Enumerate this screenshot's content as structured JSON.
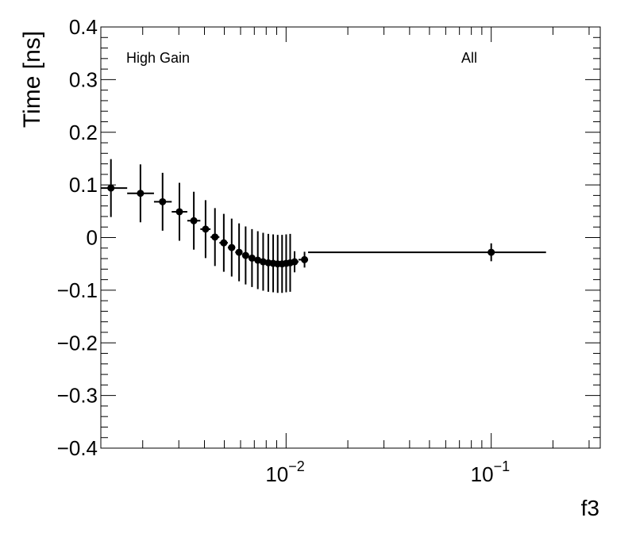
{
  "chart_data": {
    "type": "scatter",
    "title": "",
    "xlabel": "f3",
    "ylabel": "Time [ns]",
    "x_scale": "log",
    "xlim": [
      0.00125,
      0.34
    ],
    "ylim": [
      -0.4,
      0.4
    ],
    "grid": false,
    "legend": "none",
    "colors": {
      "marker": "#000000",
      "axes": "#000000",
      "background": "#ffffff"
    },
    "y_ticks": [
      {
        "value": 0.4,
        "label": "0.4"
      },
      {
        "value": 0.3,
        "label": "0.3"
      },
      {
        "value": 0.2,
        "label": "0.2"
      },
      {
        "value": 0.1,
        "label": "0.1"
      },
      {
        "value": 0.0,
        "label": "0"
      },
      {
        "value": -0.1,
        "label": "−0.1"
      },
      {
        "value": -0.2,
        "label": "−0.2"
      },
      {
        "value": -0.3,
        "label": "−0.3"
      },
      {
        "value": -0.4,
        "label": "−0.4"
      }
    ],
    "x_ticks": [
      {
        "value": 0.01,
        "base": "10",
        "exponent": "−2"
      },
      {
        "value": 0.1,
        "base": "10",
        "exponent": "−1"
      }
    ],
    "annotations": [
      {
        "text": "High Gain",
        "position": "top-left"
      },
      {
        "text": "All",
        "position": "top-right"
      }
    ],
    "series": [
      {
        "points": [
          {
            "x": 0.0014,
            "y": 0.094,
            "xlo": 0.00125,
            "xhi": 0.00168,
            "yerr": 0.055
          },
          {
            "x": 0.00195,
            "y": 0.084,
            "xlo": 0.00168,
            "xhi": 0.00227,
            "yerr": 0.055
          },
          {
            "x": 0.0025,
            "y": 0.068,
            "xlo": 0.00227,
            "xhi": 0.00277,
            "yerr": 0.055
          },
          {
            "x": 0.00302,
            "y": 0.049,
            "xlo": 0.00277,
            "xhi": 0.0033,
            "yerr": 0.055
          },
          {
            "x": 0.00355,
            "y": 0.032,
            "xlo": 0.0033,
            "xhi": 0.00382,
            "yerr": 0.055
          },
          {
            "x": 0.00405,
            "y": 0.016,
            "xlo": 0.00382,
            "xhi": 0.00428,
            "yerr": 0.055
          },
          {
            "x": 0.0045,
            "y": 0.001,
            "xlo": 0.00428,
            "xhi": 0.00473,
            "yerr": 0.055
          },
          {
            "x": 0.00497,
            "y": -0.01,
            "xlo": 0.00473,
            "xhi": 0.0052,
            "yerr": 0.055
          },
          {
            "x": 0.00543,
            "y": -0.019,
            "xlo": 0.0052,
            "xhi": 0.00565,
            "yerr": 0.055
          },
          {
            "x": 0.0059,
            "y": -0.028,
            "xlo": 0.00565,
            "xhi": 0.00613,
            "yerr": 0.055
          },
          {
            "x": 0.00635,
            "y": -0.034,
            "xlo": 0.00613,
            "xhi": 0.00658,
            "yerr": 0.055
          },
          {
            "x": 0.00682,
            "y": -0.039,
            "xlo": 0.00658,
            "xhi": 0.00705,
            "yerr": 0.055
          },
          {
            "x": 0.00728,
            "y": -0.043,
            "xlo": 0.00705,
            "xhi": 0.0075,
            "yerr": 0.055
          },
          {
            "x": 0.00773,
            "y": -0.046,
            "xlo": 0.0075,
            "xhi": 0.00796,
            "yerr": 0.055
          },
          {
            "x": 0.00819,
            "y": -0.048,
            "xlo": 0.00796,
            "xhi": 0.00842,
            "yerr": 0.055
          },
          {
            "x": 0.00865,
            "y": -0.049,
            "xlo": 0.00842,
            "xhi": 0.00887,
            "yerr": 0.055
          },
          {
            "x": 0.0091,
            "y": -0.05,
            "xlo": 0.00887,
            "xhi": 0.00933,
            "yerr": 0.055
          },
          {
            "x": 0.00956,
            "y": -0.05,
            "xlo": 0.00933,
            "xhi": 0.00978,
            "yerr": 0.055
          },
          {
            "x": 0.01001,
            "y": -0.049,
            "xlo": 0.00978,
            "xhi": 0.01024,
            "yerr": 0.055
          },
          {
            "x": 0.01047,
            "y": -0.048,
            "xlo": 0.01024,
            "xhi": 0.0107,
            "yerr": 0.055
          },
          {
            "x": 0.011,
            "y": -0.046,
            "xlo": 0.0107,
            "xhi": 0.0115,
            "yerr": 0.02
          },
          {
            "x": 0.0123,
            "y": -0.042,
            "xlo": 0.0115,
            "xhi": 0.0128,
            "yerr": 0.015
          },
          {
            "x": 0.1,
            "y": -0.028,
            "xlo": 0.0128,
            "xhi": 0.185,
            "yerr": 0.017
          }
        ]
      }
    ]
  }
}
